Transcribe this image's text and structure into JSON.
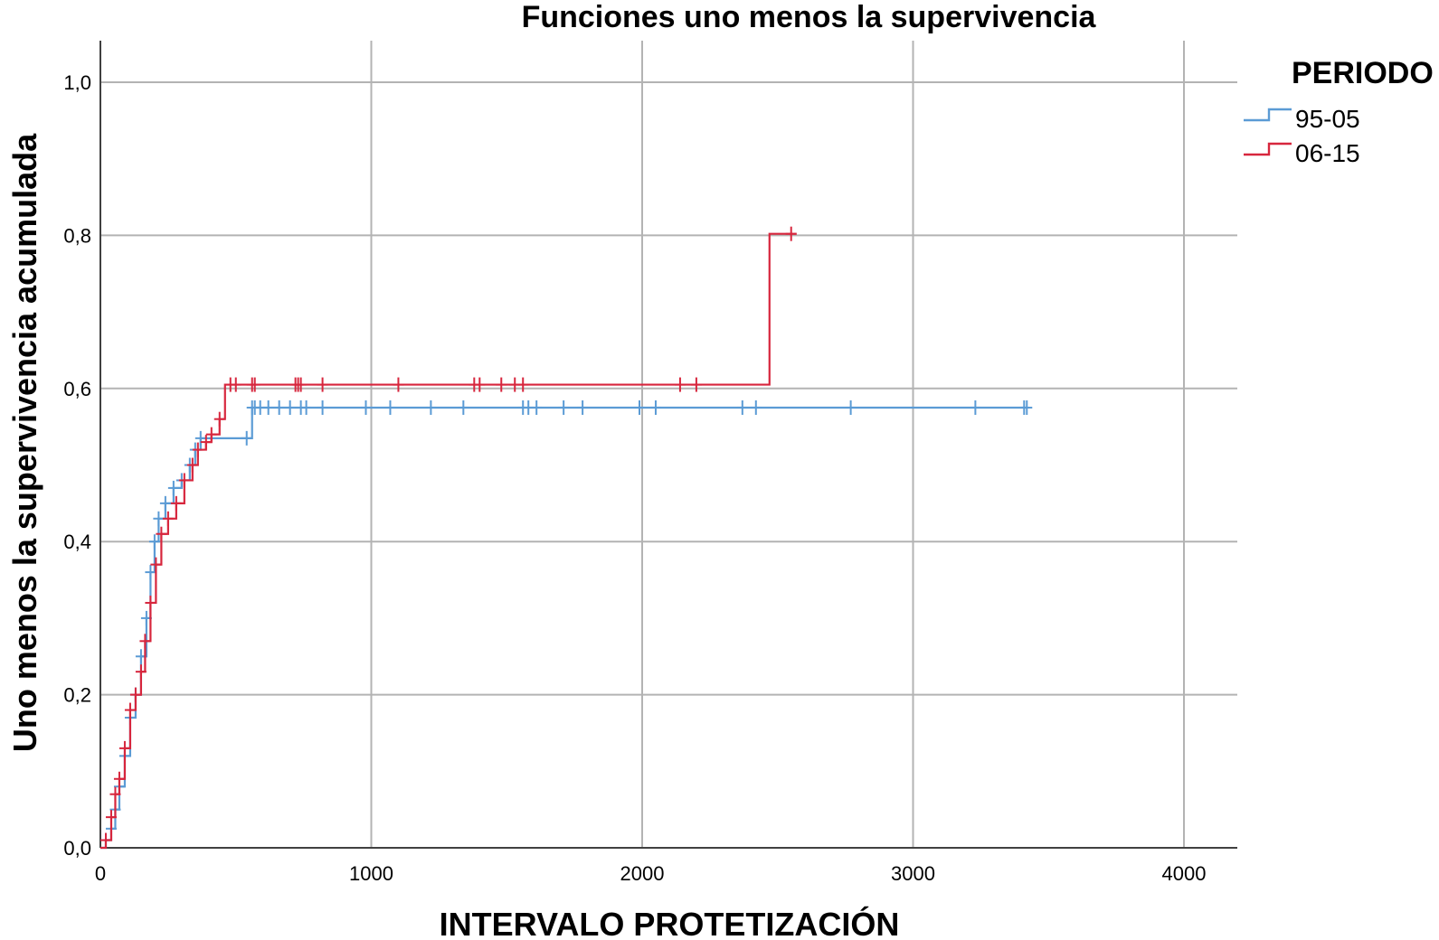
{
  "chart_data": {
    "type": "line",
    "title": "Funciones uno menos la supervivencia",
    "xlabel": "INTERVALO PROTETIZACIÓN",
    "ylabel": "Uno menos la supervivencia acumulada",
    "xlim": [
      0,
      4200
    ],
    "ylim": [
      0,
      1.05
    ],
    "x_ticks": [
      0,
      1000,
      2000,
      3000,
      4000
    ],
    "x_tick_labels": [
      "0",
      "1000",
      "2000",
      "3000",
      "4000"
    ],
    "y_ticks": [
      0,
      0.2,
      0.4,
      0.6,
      0.8,
      1.0
    ],
    "y_tick_labels": [
      "0,0",
      "0,2",
      "0,4",
      "0,6",
      "0,8",
      "1,0"
    ],
    "grid": true,
    "legend": {
      "title": "PERIODO",
      "placement": "right"
    },
    "series": [
      {
        "name": "95-05",
        "color": "#5b9bd5",
        "steps": [
          [
            0,
            0
          ],
          [
            20,
            0.01
          ],
          [
            40,
            0.025
          ],
          [
            55,
            0.05
          ],
          [
            70,
            0.08
          ],
          [
            90,
            0.12
          ],
          [
            110,
            0.17
          ],
          [
            130,
            0.2
          ],
          [
            150,
            0.25
          ],
          [
            170,
            0.3
          ],
          [
            185,
            0.36
          ],
          [
            200,
            0.4
          ],
          [
            215,
            0.43
          ],
          [
            240,
            0.45
          ],
          [
            270,
            0.47
          ],
          [
            300,
            0.48
          ],
          [
            330,
            0.5
          ],
          [
            350,
            0.52
          ],
          [
            370,
            0.535
          ],
          [
            540,
            0.535
          ],
          [
            560,
            0.575
          ],
          [
            3420,
            0.575
          ]
        ],
        "censored_x": [
          570,
          590,
          620,
          660,
          700,
          740,
          760,
          820,
          980,
          1070,
          1220,
          1340,
          1560,
          1580,
          1610,
          1710,
          1780,
          1990,
          2050,
          2370,
          2420,
          2770,
          3230,
          3410
        ]
      },
      {
        "name": "06-15",
        "color": "#d7263d",
        "steps": [
          [
            0,
            0
          ],
          [
            20,
            0.01
          ],
          [
            40,
            0.04
          ],
          [
            55,
            0.07
          ],
          [
            70,
            0.09
          ],
          [
            90,
            0.13
          ],
          [
            110,
            0.18
          ],
          [
            130,
            0.2
          ],
          [
            150,
            0.23
          ],
          [
            165,
            0.27
          ],
          [
            185,
            0.32
          ],
          [
            205,
            0.37
          ],
          [
            225,
            0.41
          ],
          [
            250,
            0.43
          ],
          [
            280,
            0.45
          ],
          [
            310,
            0.48
          ],
          [
            340,
            0.5
          ],
          [
            360,
            0.52
          ],
          [
            390,
            0.53
          ],
          [
            410,
            0.54
          ],
          [
            440,
            0.56
          ],
          [
            460,
            0.605
          ],
          [
            2470,
            0.605
          ],
          [
            2470,
            0.802
          ],
          [
            2570,
            0.802
          ]
        ],
        "censored_x": [
          480,
          500,
          560,
          570,
          720,
          730,
          740,
          820,
          1100,
          1380,
          1400,
          1480,
          1530,
          1560,
          2140,
          2200,
          2550
        ]
      }
    ]
  }
}
